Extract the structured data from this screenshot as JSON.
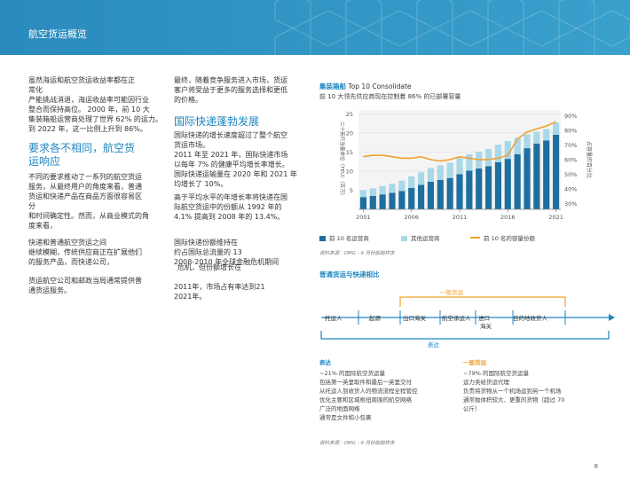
{
  "header": {
    "title": "航空货运概览"
  },
  "left_column": {
    "p1": "虽然海运和航空货运收益率都在正\n常化\n产能挑战消退，海运收益率可能因行业\n整合而保持高位。 2000 年，前 10 大\n集装箱船运营商处理了世界 62% 的运力。\n到 2022 年，这一比例上升到 86%。",
    "heading": "要求各不相同，航空货\n运响应",
    "p2": "不同的要求推动了一系列的航空货运\n服务，从最终用户的角度来看，普通\n货运和快递产品在商品方面很容易区\n分\n和时间确定性。然而，从商业模式的角\n度来看，",
    "p3": "快递和普通航空货运之间\n继续模糊，传统供应商正在扩展他们\n的服务产品，而快递公司，",
    "p4": "货运航空公司和邮政当局通常提供普\n通货运服务。"
  },
  "middle_column": {
    "p1": "最终，随着竞争服务进入市场，货运\n客户将受益于更多的服务选择和更低\n的价格。",
    "heading": "国际快递蓬勃发展",
    "p2": "国际快递的增长速度超过了整个航空\n货运市场。\n2011 年至 2021 年，国际快递市场\n以每年 7% 的健康平均增长率增长。\n国际快递运输量在 2020 年和 2021 年\n均增长了 10%。",
    "p3": "高于平均水平的年增长率将快递在国\n际航空货运中的份额从 1992 年的\n4.1% 提高到 2008 年的 13.4%。",
    "p4a": "国际快递份额维持在\n约占国际总流量的 13\n2008-2010 年全球金融危机期间",
    "p4b": "危机，但份额增长在",
    "p4c": "2011年，市场占有率达到21\n2021年。"
  },
  "chart_section": {
    "title_label": "集装箱船",
    "title_rest": "Top 10 Consolidate",
    "subtitle": "前 10 大领先供应商现在控制着 86% 的已部署容量",
    "source": "资料来源：OMG - 9 月份船舶样本"
  },
  "chart_data": {
    "type": "bar",
    "stacked": true,
    "years": [
      2001,
      2002,
      2003,
      2004,
      2005,
      2006,
      2007,
      2008,
      2009,
      2010,
      2011,
      2012,
      2013,
      2014,
      2015,
      2016,
      2017,
      2018,
      2019,
      2020,
      2021
    ],
    "x_tick_labels": [
      "2001",
      "2006",
      "2011",
      "2016",
      "2021"
    ],
    "ylabel_left": "二十英尺当量单位（TEU）（百万）",
    "ylabel_right": "占容量的百分比",
    "y_left_ticks": [
      "25",
      "20",
      "15",
      "10",
      "5"
    ],
    "y_right_ticks": [
      "90%",
      "80%",
      "70%",
      "60%",
      "50%",
      "40%",
      "30%"
    ],
    "ylim_left": [
      0,
      26
    ],
    "ylim_right": [
      26,
      94
    ],
    "series": [
      {
        "name": "前 10 名运营商",
        "color": "#1e6f9f",
        "values": [
          3.2,
          3.5,
          3.9,
          4.3,
          4.8,
          5.6,
          6.4,
          7.2,
          7.7,
          8.2,
          9.2,
          10.1,
          10.7,
          11.3,
          12.3,
          13.2,
          14.4,
          16.0,
          17.2,
          18.0,
          19.5
        ]
      },
      {
        "name": "其他运营商",
        "color": "#a9d8e8",
        "values": [
          1.8,
          2.0,
          2.2,
          2.4,
          2.7,
          3.0,
          3.3,
          3.6,
          3.8,
          4.0,
          4.2,
          4.3,
          4.4,
          4.5,
          4.6,
          4.7,
          4.3,
          3.6,
          3.1,
          3.0,
          3.2
        ]
      },
      {
        "name": "前 10 名的容量份额",
        "color": "#f0a030",
        "type": "line",
        "values": [
          62,
          63,
          63,
          62,
          61,
          61,
          62,
          60,
          59,
          60,
          62,
          61,
          60,
          60,
          61,
          63,
          74,
          79,
          81,
          83,
          86
        ]
      }
    ]
  },
  "section2": {
    "title": "普通货运与快递相比",
    "flow_general_label": "一般货运",
    "flow_express_label": "表达",
    "flow_steps": [
      "托运人",
      "起源",
      "出口海关",
      "航空承运人",
      "进口\n海关",
      "目的地收货人"
    ],
    "express_list": {
      "title": "表达",
      "items": [
        "~21% 的国际航空货运量",
        "包括第一英里取件和最后一英里交付",
        "从托运人到收货人的物流流程全程管控",
        "优化主要和区域枢纽周围的航空网络",
        "广泛的地面网络",
        "通常是文件和小包裹"
      ]
    },
    "general_list": {
      "title": "一般货运",
      "items": [
        "~79% 的国际航空货运量",
        "运力卖给货运代理",
        "负责将货物从一个机场运到另一个机场",
        "通常抛体积较大、更重的货物（超过 70\n公斤）"
      ]
    },
    "source": "资料来源：OMG - 9 月份船舶样本"
  },
  "page_number": "8",
  "colors": {
    "header": "#2a8bbc",
    "accent": "#1e86c0",
    "orange": "#f0a030",
    "bar_dark": "#1e6f9f",
    "bar_light": "#a9d8e8"
  }
}
